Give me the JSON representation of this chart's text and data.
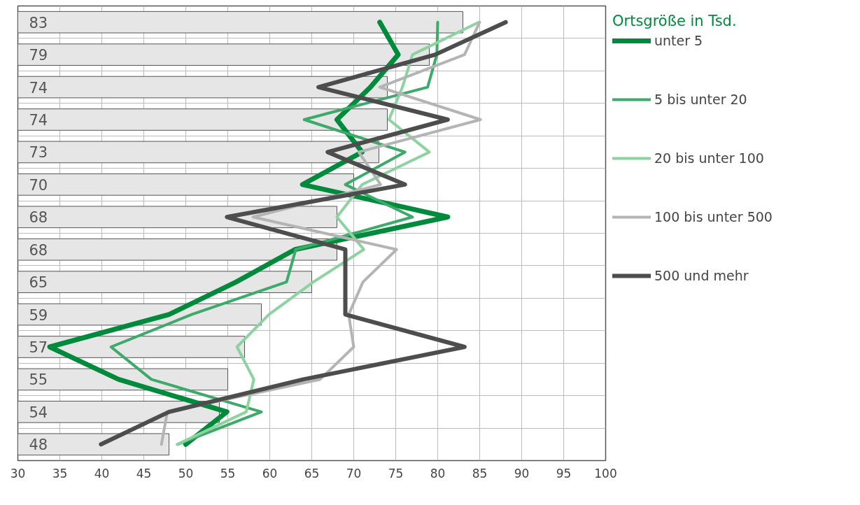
{
  "chart_data": {
    "type": "bar",
    "orientation": "horizontal",
    "legend_title": "Ortsgröße in Tsd.",
    "legend": "right",
    "grid": true,
    "tick_labels": "x",
    "categories": [
      null,
      null,
      null,
      null,
      null,
      null,
      null,
      null,
      null,
      null,
      null,
      null,
      null,
      null
    ],
    "xlim": [
      30,
      100
    ],
    "xticks": [
      30,
      35,
      40,
      45,
      50,
      55,
      60,
      65,
      70,
      75,
      80,
      85,
      90,
      95,
      100
    ],
    "series": [
      {
        "type": "bar",
        "color": "#e6e6e6",
        "data_labels": true,
        "values": [
          83,
          79,
          74,
          74,
          73,
          70,
          68,
          68,
          65,
          59,
          57,
          55,
          54,
          48
        ]
      },
      {
        "type": "line",
        "name": "unter 5",
        "color": "#008a3c",
        "values": [
          73.1,
          75.3,
          72,
          68,
          71,
          63.9,
          81.2,
          63,
          56,
          48,
          33.8,
          42,
          54.9,
          50
        ]
      },
      {
        "type": "line",
        "name": "5 bis unter 20",
        "color": "#3daa6a",
        "values": [
          80,
          79.9,
          78.8,
          64.1,
          76.1,
          69,
          77,
          63.1,
          62,
          50.7,
          41.1,
          45.9,
          59,
          49
        ]
      },
      {
        "type": "line",
        "name": "20 bis unter 100",
        "color": "#8cd3a0",
        "values": [
          84.9,
          77,
          75.8,
          74.2,
          79,
          71,
          68,
          71.2,
          65.2,
          59.9,
          56.1,
          58.1,
          57.2,
          49
        ]
      },
      {
        "type": "line",
        "name": "100 bis unter 500",
        "color": "#b4b4b4",
        "values": [
          85,
          83.2,
          73.1,
          85.1,
          70.6,
          73.2,
          58,
          75.1,
          71.1,
          69.4,
          70,
          66,
          47.8,
          47.1
        ]
      },
      {
        "type": "line",
        "name": "500 und mehr",
        "color": "#4d4d4d",
        "values": [
          88.1,
          79.7,
          65.8,
          81.2,
          66.9,
          76.1,
          54.9,
          69,
          69,
          69,
          83.2,
          64,
          48,
          39.9
        ]
      }
    ]
  }
}
